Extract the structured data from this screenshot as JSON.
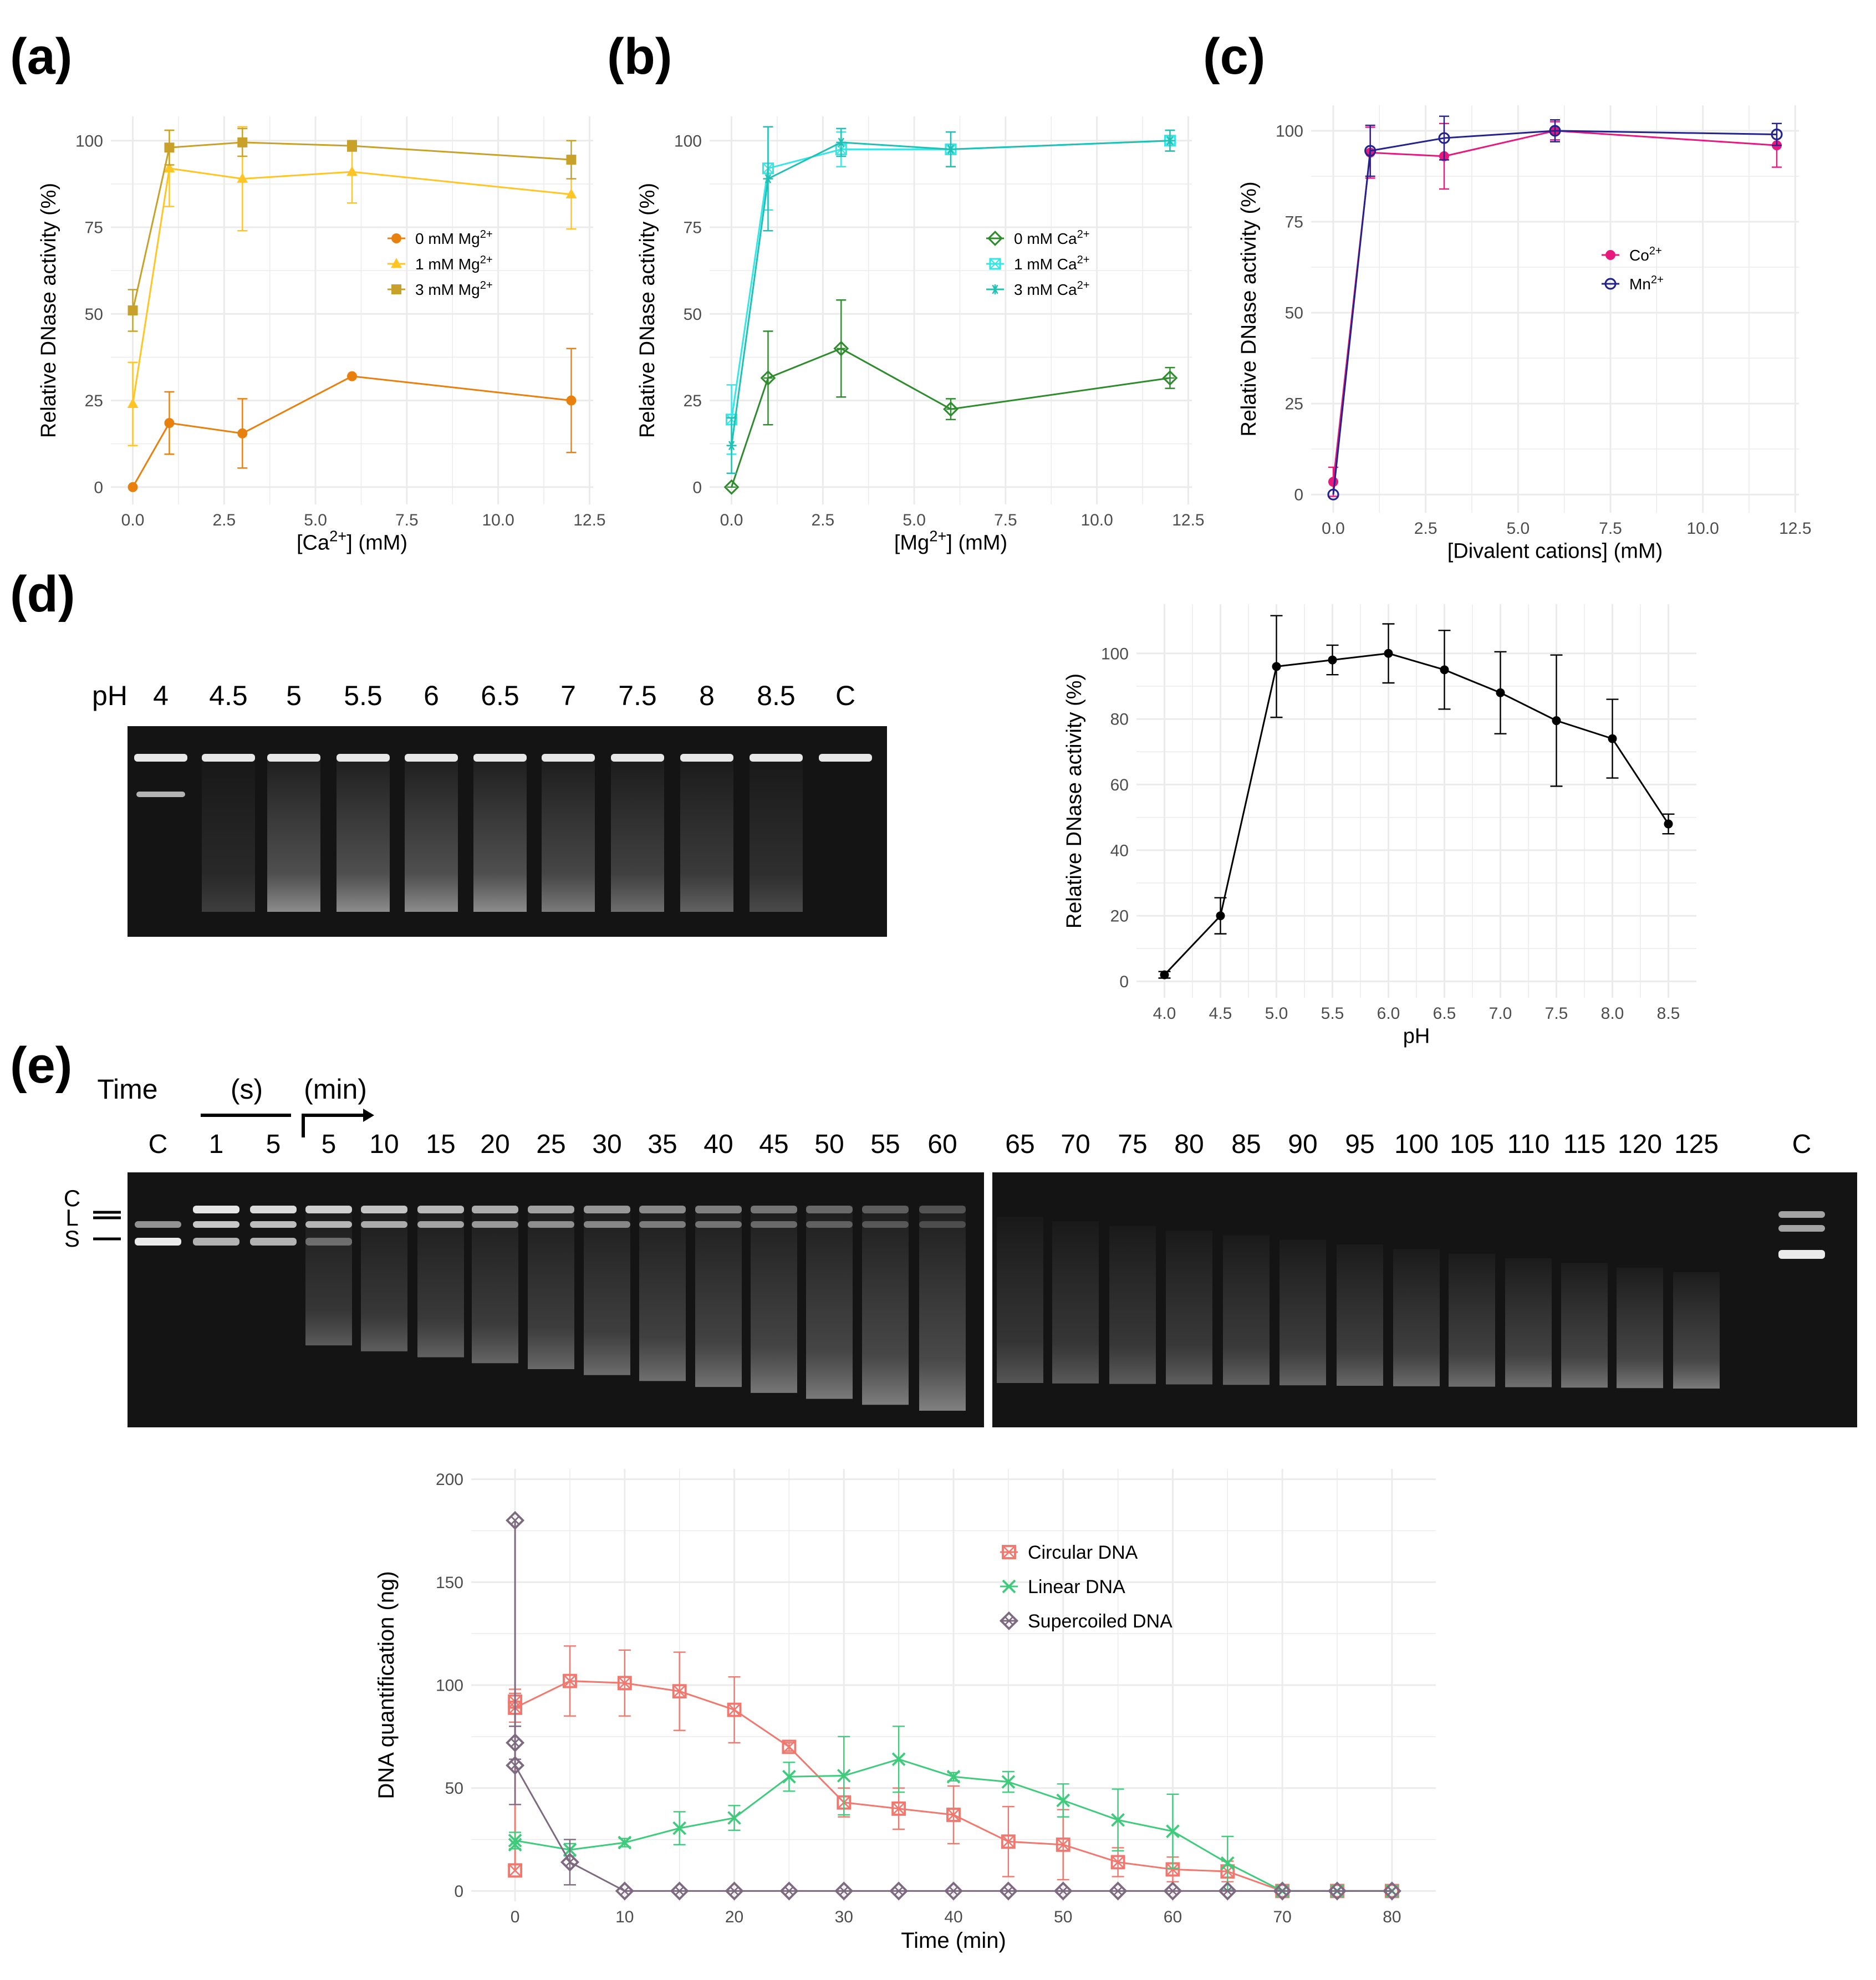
{
  "panel_labels": {
    "a": "(a)",
    "b": "(b)",
    "c": "(c)",
    "d": "(d)",
    "e": "(e)"
  },
  "colors": {
    "a_0mM": "#E8800E",
    "a_1mM": "#FFC524",
    "a_3mM": "#C8A12A",
    "b_0mM": "#2E8B2E",
    "b_1mM": "#34E6E6",
    "b_3mM": "#20C0B4",
    "c_co": "#E8197E",
    "c_mn": "#23238E",
    "ph": "#000000",
    "circular": "#F0786E",
    "linear": "#3FCB7C",
    "supercoiled": "#7D6A80",
    "grid": "#EBEBEB",
    "axis_text": "#4D4D4D"
  },
  "gel_d": {
    "ph_prefix": "pH",
    "lanes": [
      "4",
      "4.5",
      "5",
      "5.5",
      "6",
      "6.5",
      "7",
      "7.5",
      "8",
      "8.5",
      "C"
    ]
  },
  "gel_e": {
    "time_label": "Time",
    "unit_s": "(s)",
    "unit_min": "(min)",
    "band_labels": [
      "C",
      "L",
      "S"
    ],
    "lanes_left": [
      "C",
      "1",
      "5",
      "5",
      "10",
      "15",
      "20",
      "25",
      "30",
      "35",
      "40",
      "45",
      "50",
      "55",
      "60"
    ],
    "lanes_right": [
      "65",
      "70",
      "75",
      "80",
      "85",
      "90",
      "95",
      "100",
      "105",
      "110",
      "115",
      "120",
      "125",
      "C"
    ]
  },
  "chart_data": [
    {
      "id": "a",
      "type": "line",
      "title": "",
      "xlabel": "[Ca2+] (mM)",
      "ylabel": "Relative DNase activity (%)",
      "xlim": [
        -0.6,
        12.6
      ],
      "ylim": [
        -5,
        107
      ],
      "xticks": [
        0,
        2.5,
        5,
        7.5,
        10,
        12.5
      ],
      "xtick_labels": [
        "0.0",
        "2.5",
        "5.0",
        "7.5",
        "10.0",
        "12.5"
      ],
      "yticks": [
        0,
        25,
        50,
        75,
        100
      ],
      "ytick_labels": [
        "0",
        "25",
        "50",
        "75",
        "100"
      ],
      "legend_position": "middle-right",
      "series": [
        {
          "name": "0 mM Mg2+",
          "color_key": "a_0mM",
          "marker": "circle",
          "x": [
            0,
            1,
            3,
            6,
            12
          ],
          "y": [
            0,
            18.5,
            15.5,
            32,
            25
          ],
          "err": [
            0,
            9,
            10,
            0,
            15
          ]
        },
        {
          "name": "1 mM Mg2+",
          "color_key": "a_1mM",
          "marker": "triangle",
          "x": [
            0,
            1,
            3,
            6,
            12
          ],
          "y": [
            24,
            92,
            89,
            91,
            84.5
          ],
          "err": [
            12,
            11,
            15,
            9,
            10
          ]
        },
        {
          "name": "3 mM Mg2+",
          "color_key": "a_3mM",
          "marker": "square",
          "x": [
            0,
            1,
            3,
            6,
            12
          ],
          "y": [
            51,
            98,
            99.5,
            98.5,
            94.5
          ],
          "err": [
            6,
            5,
            4,
            1.5,
            5.5
          ]
        }
      ]
    },
    {
      "id": "b",
      "type": "line",
      "title": "",
      "xlabel": "[Mg2+] (mM)",
      "ylabel": "Relative DNase activity (%)",
      "xlim": [
        -0.6,
        12.6
      ],
      "ylim": [
        -5,
        107
      ],
      "xticks": [
        0,
        2.5,
        5,
        7.5,
        10,
        12.5
      ],
      "xtick_labels": [
        "0.0",
        "2.5",
        "5.0",
        "7.5",
        "10.0",
        "12.5"
      ],
      "yticks": [
        0,
        25,
        50,
        75,
        100
      ],
      "ytick_labels": [
        "0",
        "25",
        "50",
        "75",
        "100"
      ],
      "legend_position": "middle-right",
      "series": [
        {
          "name": "0 mM Ca2+",
          "color_key": "b_0mM",
          "marker": "diamond-open",
          "x": [
            0,
            1,
            3,
            6,
            12
          ],
          "y": [
            0,
            31.5,
            40,
            22.5,
            31.5
          ],
          "err": [
            0,
            13.5,
            14,
            3,
            3
          ]
        },
        {
          "name": "1 mM Ca2+",
          "color_key": "b_1mM",
          "marker": "square-cross",
          "x": [
            0,
            1,
            3,
            6,
            12
          ],
          "y": [
            19.5,
            92,
            97.5,
            97.5,
            100
          ],
          "err": [
            10,
            12,
            5,
            5,
            3
          ]
        },
        {
          "name": "3 mM Ca2+",
          "color_key": "b_3mM",
          "marker": "asterisk",
          "x": [
            0,
            1,
            3,
            6,
            12
          ],
          "y": [
            12,
            89,
            99.5,
            97.5,
            100
          ],
          "err": [
            8,
            15,
            4,
            5,
            3
          ]
        }
      ]
    },
    {
      "id": "c",
      "type": "line",
      "title": "",
      "xlabel": "[Divalent cations] (mM)",
      "ylabel": "Relative DNase activity (%)",
      "xlim": [
        -0.6,
        12.6
      ],
      "ylim": [
        -5,
        107
      ],
      "xticks": [
        0,
        2.5,
        5,
        7.5,
        10,
        12.5
      ],
      "xtick_labels": [
        "0.0",
        "2.5",
        "5.0",
        "7.5",
        "10.0",
        "12.5"
      ],
      "yticks": [
        0,
        25,
        50,
        75,
        100
      ],
      "ytick_labels": [
        "0",
        "25",
        "50",
        "75",
        "100"
      ],
      "legend_position": "middle-right",
      "series": [
        {
          "name": "Co2+",
          "color_key": "c_co",
          "marker": "circle",
          "x": [
            0,
            1,
            3,
            6,
            12
          ],
          "y": [
            3.5,
            94,
            93,
            100,
            96
          ],
          "err": [
            4,
            7,
            9,
            2.5,
            6
          ]
        },
        {
          "name": "Mn2+",
          "color_key": "c_mn",
          "marker": "circle-open",
          "x": [
            0,
            1,
            3,
            6,
            12
          ],
          "y": [
            0,
            94.5,
            98,
            100,
            99
          ],
          "err": [
            0,
            7,
            6,
            3,
            3
          ]
        }
      ]
    },
    {
      "id": "d",
      "type": "line",
      "title": "",
      "xlabel": "pH",
      "ylabel": "Relative DNase activity (%)",
      "xlim": [
        3.75,
        8.75
      ],
      "ylim": [
        -5,
        115
      ],
      "xticks": [
        4.0,
        4.5,
        5.0,
        5.5,
        6.0,
        6.5,
        7.0,
        7.5,
        8.0,
        8.5
      ],
      "xtick_labels": [
        "4.0",
        "4.5",
        "5.0",
        "5.5",
        "6.0",
        "6.5",
        "7.0",
        "7.5",
        "8.0",
        "8.5"
      ],
      "yticks": [
        0,
        20,
        40,
        60,
        80,
        100
      ],
      "ytick_labels": [
        "0",
        "20",
        "40",
        "60",
        "80",
        "100"
      ],
      "series": [
        {
          "name": "DNase activity",
          "color_key": "ph",
          "marker": "circle",
          "x": [
            4.0,
            4.5,
            5.0,
            5.5,
            6.0,
            6.5,
            7.0,
            7.5,
            8.0,
            8.5
          ],
          "y": [
            2,
            20,
            96,
            98,
            100,
            95,
            88,
            79.5,
            74,
            48
          ],
          "err": [
            1,
            5.5,
            15.5,
            4.5,
            9,
            12,
            12.5,
            20,
            12,
            3
          ]
        }
      ]
    },
    {
      "id": "e",
      "type": "line",
      "title": "",
      "xlabel": "Time (min)",
      "ylabel": "DNA quantification (ng)",
      "xlim": [
        -4,
        84
      ],
      "ylim": [
        -5,
        205
      ],
      "xticks": [
        0,
        10,
        20,
        30,
        40,
        50,
        60,
        70,
        80
      ],
      "xtick_labels": [
        "0",
        "10",
        "20",
        "30",
        "40",
        "50",
        "60",
        "70",
        "80"
      ],
      "yticks": [
        0,
        50,
        100,
        150,
        200
      ],
      "ytick_labels": [
        "0",
        "50",
        "100",
        "150",
        "200"
      ],
      "legend_position": "top-right",
      "series": [
        {
          "name": "Circular DNA",
          "color_key": "circular",
          "marker": "square-cross",
          "x": [
            0,
            0,
            0,
            5,
            10,
            15,
            20,
            25,
            30,
            35,
            40,
            45,
            50,
            55,
            60,
            65,
            70,
            75,
            80
          ],
          "y": [
            10,
            92,
            89,
            102,
            101,
            97,
            88,
            70,
            43,
            40,
            37,
            24,
            22.5,
            14,
            10.5,
            9.5,
            0,
            0,
            0
          ],
          "err": [
            0,
            6,
            7,
            17,
            16,
            19,
            16,
            2,
            7,
            10,
            14,
            17,
            17,
            7,
            6,
            5,
            0,
            0,
            0
          ]
        },
        {
          "name": "Linear DNA",
          "color_key": "linear",
          "marker": "x",
          "x": [
            0,
            0,
            5,
            10,
            15,
            20,
            25,
            30,
            35,
            40,
            45,
            50,
            55,
            60,
            65,
            70,
            75,
            80
          ],
          "y": [
            22.5,
            24.5,
            20,
            23.5,
            30.5,
            35.5,
            55.5,
            56,
            64,
            55.5,
            53,
            44,
            34.5,
            29,
            13.5,
            0,
            0,
            0
          ],
          "err": [
            0,
            4,
            3,
            2,
            8,
            6,
            7,
            19,
            16,
            2,
            5,
            8,
            15,
            18,
            13,
            0,
            0,
            0
          ]
        },
        {
          "name": "Supercoiled DNA",
          "color_key": "supercoiled",
          "marker": "diamond-cross",
          "x": [
            0,
            0,
            0,
            5,
            10,
            15,
            20,
            25,
            30,
            35,
            40,
            45,
            50,
            55,
            60,
            65,
            70,
            75,
            80
          ],
          "y": [
            180,
            72,
            61,
            14,
            0,
            0,
            0,
            0,
            0,
            0,
            0,
            0,
            0,
            0,
            0,
            0,
            0,
            0,
            0
          ],
          "err": [
            0,
            8,
            19,
            11,
            0,
            0,
            0,
            0,
            0,
            0,
            0,
            0,
            0,
            0,
            0,
            0,
            0,
            0,
            0
          ]
        }
      ]
    }
  ]
}
